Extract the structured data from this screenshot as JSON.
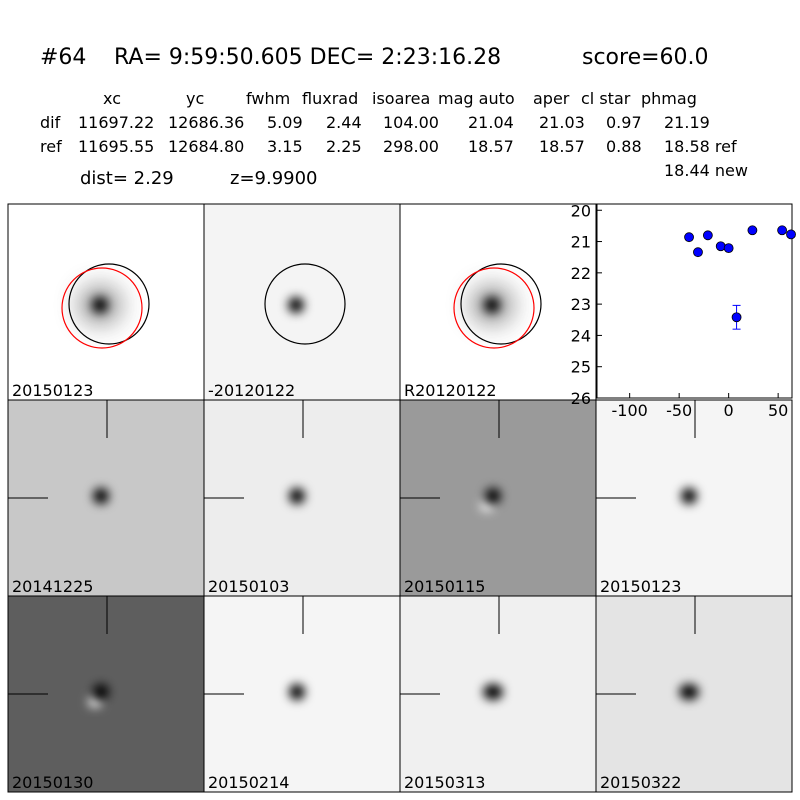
{
  "header": {
    "id": "#64",
    "coords": "RA= 9:59:50.605 DEC= 2:23:16.28",
    "score": "score=60.0"
  },
  "table": {
    "columns": [
      "xc",
      "yc",
      "fwhm",
      "fluxrad",
      "isoarea",
      "mag auto",
      "aper",
      "cl star",
      "phmag"
    ],
    "rows": [
      [
        "dif",
        "11697.22",
        "12686.36",
        "5.09",
        "2.44",
        "104.00",
        "21.04",
        "21.03",
        "0.97",
        "21.19"
      ],
      [
        "ref",
        "11695.55",
        "12684.80",
        "3.15",
        "2.25",
        "298.00",
        "18.57",
        "18.57",
        "0.88",
        "18.58 ref"
      ]
    ],
    "extra": "18.44 new"
  },
  "info": {
    "dist": "dist=  2.29",
    "z": "z=9.9900"
  },
  "stamps": [
    {
      "label": "20150123"
    },
    {
      "label": "-20120122"
    },
    {
      "label": "R20120122"
    },
    {
      "label": "20141225"
    },
    {
      "label": "20150103"
    },
    {
      "label": "20150115"
    },
    {
      "label": "20150123",
      "label_color": "#ff0000"
    },
    {
      "label": "20150130"
    },
    {
      "label": "20150214"
    },
    {
      "label": "20150313"
    },
    {
      "label": "20150322"
    }
  ],
  "chart_data": {
    "type": "scatter",
    "x": [
      -40,
      -31,
      -21,
      -8,
      0,
      8,
      24,
      54,
      63
    ],
    "series": [
      {
        "color": "#0000ff",
        "values": [
          20.86,
          21.34,
          20.8,
          21.15,
          21.21,
          23.42,
          20.64,
          20.64,
          20.77
        ],
        "errors": [
          null,
          null,
          null,
          null,
          null,
          0.38,
          null,
          null,
          null
        ]
      }
    ],
    "xlim": [
      -133,
      64
    ],
    "xticks": [
      -100,
      -50,
      0,
      50
    ],
    "ylim": [
      19.8,
      26
    ],
    "yticks": [
      20,
      21,
      22,
      23,
      24,
      25,
      26
    ],
    "y_inverted": true
  }
}
